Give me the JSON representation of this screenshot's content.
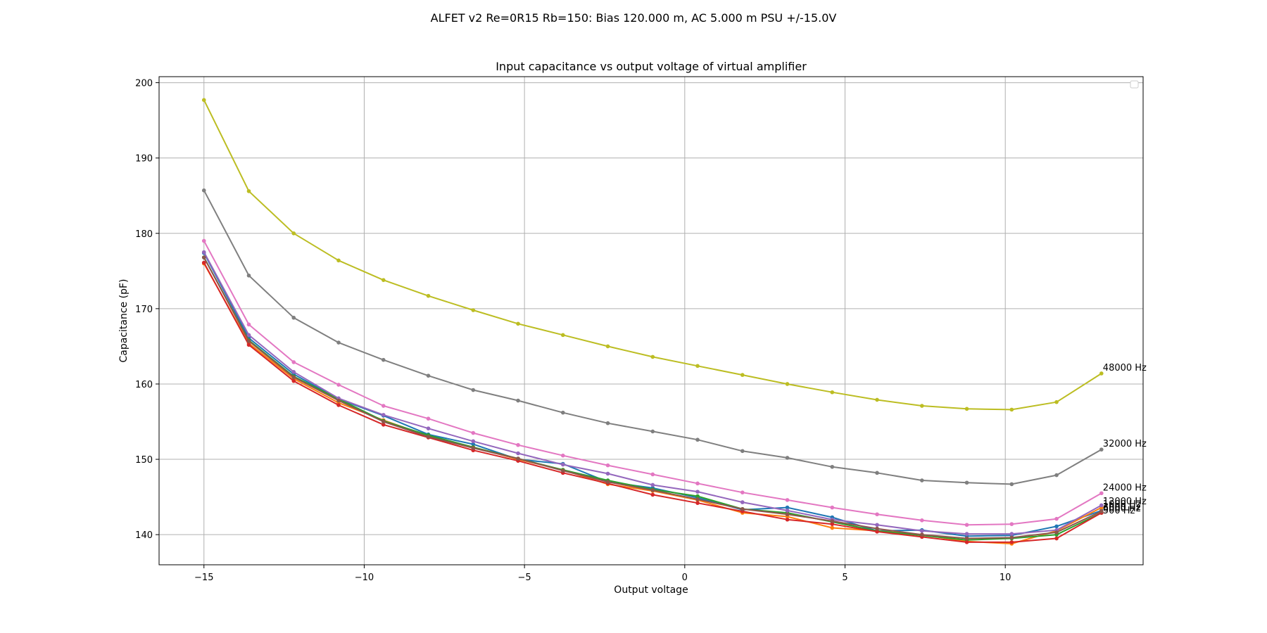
{
  "chart_data": {
    "type": "line",
    "suptitle": "ALFET v2 Re=0R15 Rb=150: Bias 120.000 m, AC 5.000 m PSU +/-15.0V",
    "title": "Input capacitance vs output voltage of virtual amplifier",
    "xlabel": "Output voltage",
    "ylabel": "Capacitance (pF)",
    "xlim": [
      -16.4,
      14.3
    ],
    "ylim": [
      136,
      200.8
    ],
    "xticks": [
      -15,
      -10,
      -5,
      0,
      5,
      10
    ],
    "yticks": [
      140,
      150,
      160,
      170,
      180,
      190,
      200
    ],
    "xtick_labels": [
      "−15",
      "−10",
      "−5",
      "0",
      "5",
      "10"
    ],
    "ytick_labels": [
      "140",
      "150",
      "160",
      "170",
      "180",
      "190",
      "200"
    ],
    "grid": true,
    "x": [
      -15.0,
      -13.6,
      -12.2,
      -10.8,
      -9.4,
      -8.0,
      -6.6,
      -5.2,
      -3.8,
      -2.4,
      -1.0,
      0.4,
      1.8,
      3.2,
      4.6,
      6.0,
      7.4,
      8.8,
      10.2,
      11.6,
      13.0
    ],
    "series": [
      {
        "label": "",
        "color": "#1f77b4",
        "values": [
          177.4,
          166.1,
          161.3,
          158.0,
          155.8,
          153.3,
          152.0,
          150.0,
          149.4,
          147.0,
          146.2,
          144.9,
          143.3,
          143.6,
          142.3,
          140.5,
          140.6,
          139.8,
          139.9,
          141.1,
          143.2
        ]
      },
      {
        "label": "",
        "color": "#ff7f0e",
        "values": [
          176.0,
          165.4,
          160.7,
          157.5,
          155.2,
          153.1,
          151.6,
          150.0,
          148.6,
          146.7,
          145.8,
          144.6,
          142.9,
          142.4,
          140.9,
          140.5,
          140.0,
          139.1,
          138.8,
          140.5,
          143.6
        ]
      },
      {
        "label": "",
        "color": "#2ca02c",
        "values": [
          176.8,
          165.8,
          161.0,
          158.0,
          155.1,
          153.2,
          151.6,
          150.1,
          148.6,
          147.2,
          146.0,
          145.1,
          143.4,
          142.9,
          141.7,
          140.5,
          139.9,
          139.3,
          139.5,
          140.0,
          142.9
        ]
      },
      {
        "label": "",
        "color": "#d62728",
        "values": [
          176.1,
          165.2,
          160.4,
          157.2,
          154.6,
          152.9,
          151.2,
          149.8,
          148.2,
          146.8,
          145.3,
          144.2,
          143.1,
          142.0,
          141.4,
          140.4,
          139.7,
          139.0,
          139.0,
          139.5,
          142.9
        ]
      },
      {
        "label": "",
        "color": "#9467bd",
        "values": [
          177.5,
          166.5,
          161.6,
          158.1,
          155.9,
          154.1,
          152.4,
          150.8,
          149.3,
          148.1,
          146.6,
          145.7,
          144.3,
          143.2,
          142.0,
          141.3,
          140.5,
          140.1,
          140.1,
          140.6,
          143.9
        ]
      },
      {
        "label": "",
        "color": "#8c564b",
        "values": [
          176.8,
          165.7,
          160.9,
          157.8,
          155.0,
          153.0,
          151.5,
          150.1,
          148.5,
          147.0,
          145.9,
          144.7,
          143.4,
          142.7,
          141.8,
          140.8,
          140.0,
          139.5,
          139.6,
          140.3,
          143.1
        ]
      },
      {
        "label": "24000 Hz",
        "color": "#e377c2",
        "values": [
          179.0,
          167.9,
          162.9,
          159.9,
          157.1,
          155.4,
          153.5,
          151.9,
          150.5,
          149.2,
          148.0,
          146.8,
          145.6,
          144.6,
          143.6,
          142.7,
          141.9,
          141.3,
          141.4,
          142.1,
          145.5
        ]
      },
      {
        "label": "32000 Hz",
        "color": "#7f7f7f",
        "values": [
          185.7,
          174.4,
          168.8,
          165.5,
          163.2,
          161.1,
          159.2,
          157.8,
          156.2,
          154.8,
          153.7,
          152.6,
          151.1,
          150.2,
          149.0,
          148.2,
          147.2,
          146.9,
          146.7,
          147.9,
          151.3
        ]
      },
      {
        "label": "48000 Hz",
        "color": "#bcbd22",
        "values": [
          197.7,
          185.6,
          180.0,
          176.4,
          173.8,
          171.7,
          169.8,
          168.0,
          166.5,
          165.0,
          163.6,
          162.4,
          161.2,
          160.0,
          158.9,
          157.9,
          157.1,
          156.7,
          156.6,
          157.6,
          161.4
        ]
      }
    ],
    "end_labels": [
      "24000 Hz",
      "32000 Hz",
      "48000 Hz",
      "12000 Hz",
      "1000 Hz",
      "6000 Hz",
      "3000 Hz",
      "500 Hz"
    ],
    "legend": "upper right (empty box)"
  }
}
